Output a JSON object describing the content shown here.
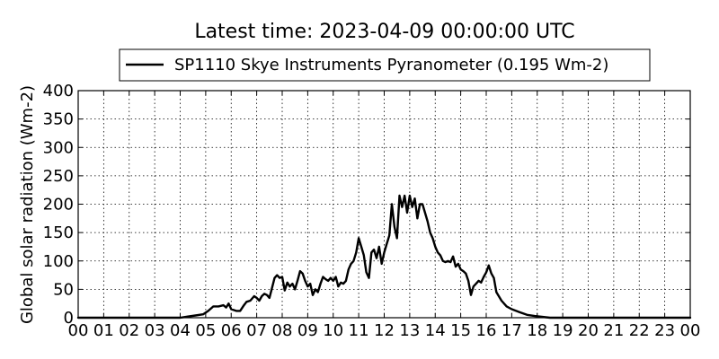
{
  "chart_data": {
    "type": "line",
    "title": "Latest time: 2023-04-09 00:00:00 UTC",
    "ylabel": "Global solar radiation (Wm-2)",
    "xlabel": "",
    "xlim": [
      0,
      24
    ],
    "ylim": [
      0,
      400
    ],
    "grid": true,
    "legend_position": "top-center",
    "x_tick_labels": [
      "00",
      "01",
      "02",
      "03",
      "04",
      "05",
      "06",
      "07",
      "08",
      "09",
      "10",
      "11",
      "12",
      "13",
      "14",
      "15",
      "16",
      "17",
      "18",
      "19",
      "20",
      "21",
      "22",
      "23",
      "00"
    ],
    "y_tick_labels": [
      "0",
      "50",
      "100",
      "150",
      "200",
      "250",
      "300",
      "350",
      "400"
    ],
    "y_ticks": [
      0,
      50,
      100,
      150,
      200,
      250,
      300,
      350,
      400
    ],
    "series": [
      {
        "name": "SP1110 Skye Instruments Pyranometer (0.195 Wm-2)",
        "color": "#000000",
        "x": [
          0,
          3.5,
          4.0,
          4.3,
          4.6,
          4.9,
          5.1,
          5.3,
          5.5,
          5.7,
          5.8,
          5.9,
          6.0,
          6.2,
          6.35,
          6.5,
          6.6,
          6.75,
          6.9,
          7.0,
          7.1,
          7.2,
          7.3,
          7.4,
          7.5,
          7.6,
          7.7,
          7.8,
          7.9,
          8.0,
          8.1,
          8.2,
          8.3,
          8.4,
          8.5,
          8.6,
          8.7,
          8.8,
          8.9,
          9.0,
          9.1,
          9.2,
          9.3,
          9.4,
          9.5,
          9.6,
          9.7,
          9.8,
          9.9,
          10.0,
          10.1,
          10.2,
          10.3,
          10.4,
          10.5,
          10.6,
          10.7,
          10.8,
          10.9,
          11.0,
          11.1,
          11.2,
          11.3,
          11.4,
          11.5,
          11.6,
          11.7,
          11.8,
          11.9,
          12.0,
          12.1,
          12.2,
          12.3,
          12.4,
          12.5,
          12.6,
          12.7,
          12.8,
          12.9,
          13.0,
          13.1,
          13.2,
          13.3,
          13.4,
          13.5,
          13.6,
          13.7,
          13.8,
          13.9,
          14.0,
          14.1,
          14.2,
          14.3,
          14.4,
          14.5,
          14.6,
          14.7,
          14.8,
          14.9,
          15.0,
          15.1,
          15.2,
          15.3,
          15.4,
          15.5,
          15.6,
          15.7,
          15.8,
          15.9,
          16.0,
          16.1,
          16.2,
          16.3,
          16.4,
          16.6,
          16.8,
          17.0,
          17.3,
          17.6,
          17.9,
          18.5,
          24
        ],
        "y": [
          0,
          0,
          0,
          2,
          4,
          6,
          12,
          20,
          20,
          22,
          18,
          25,
          15,
          12,
          12,
          22,
          28,
          30,
          38,
          35,
          30,
          38,
          42,
          40,
          35,
          52,
          70,
          75,
          70,
          72,
          48,
          62,
          55,
          60,
          50,
          65,
          82,
          78,
          65,
          55,
          60,
          40,
          50,
          45,
          60,
          72,
          68,
          65,
          70,
          65,
          72,
          55,
          62,
          60,
          65,
          85,
          95,
          100,
          115,
          140,
          125,
          110,
          80,
          70,
          115,
          120,
          105,
          125,
          95,
          115,
          130,
          145,
          200,
          160,
          140,
          215,
          195,
          215,
          185,
          215,
          195,
          210,
          175,
          200,
          200,
          185,
          170,
          150,
          140,
          125,
          115,
          110,
          100,
          98,
          100,
          98,
          108,
          90,
          95,
          85,
          82,
          78,
          65,
          40,
          55,
          60,
          65,
          62,
          72,
          80,
          92,
          78,
          70,
          45,
          30,
          20,
          15,
          10,
          5,
          3,
          0,
          0
        ]
      }
    ]
  }
}
